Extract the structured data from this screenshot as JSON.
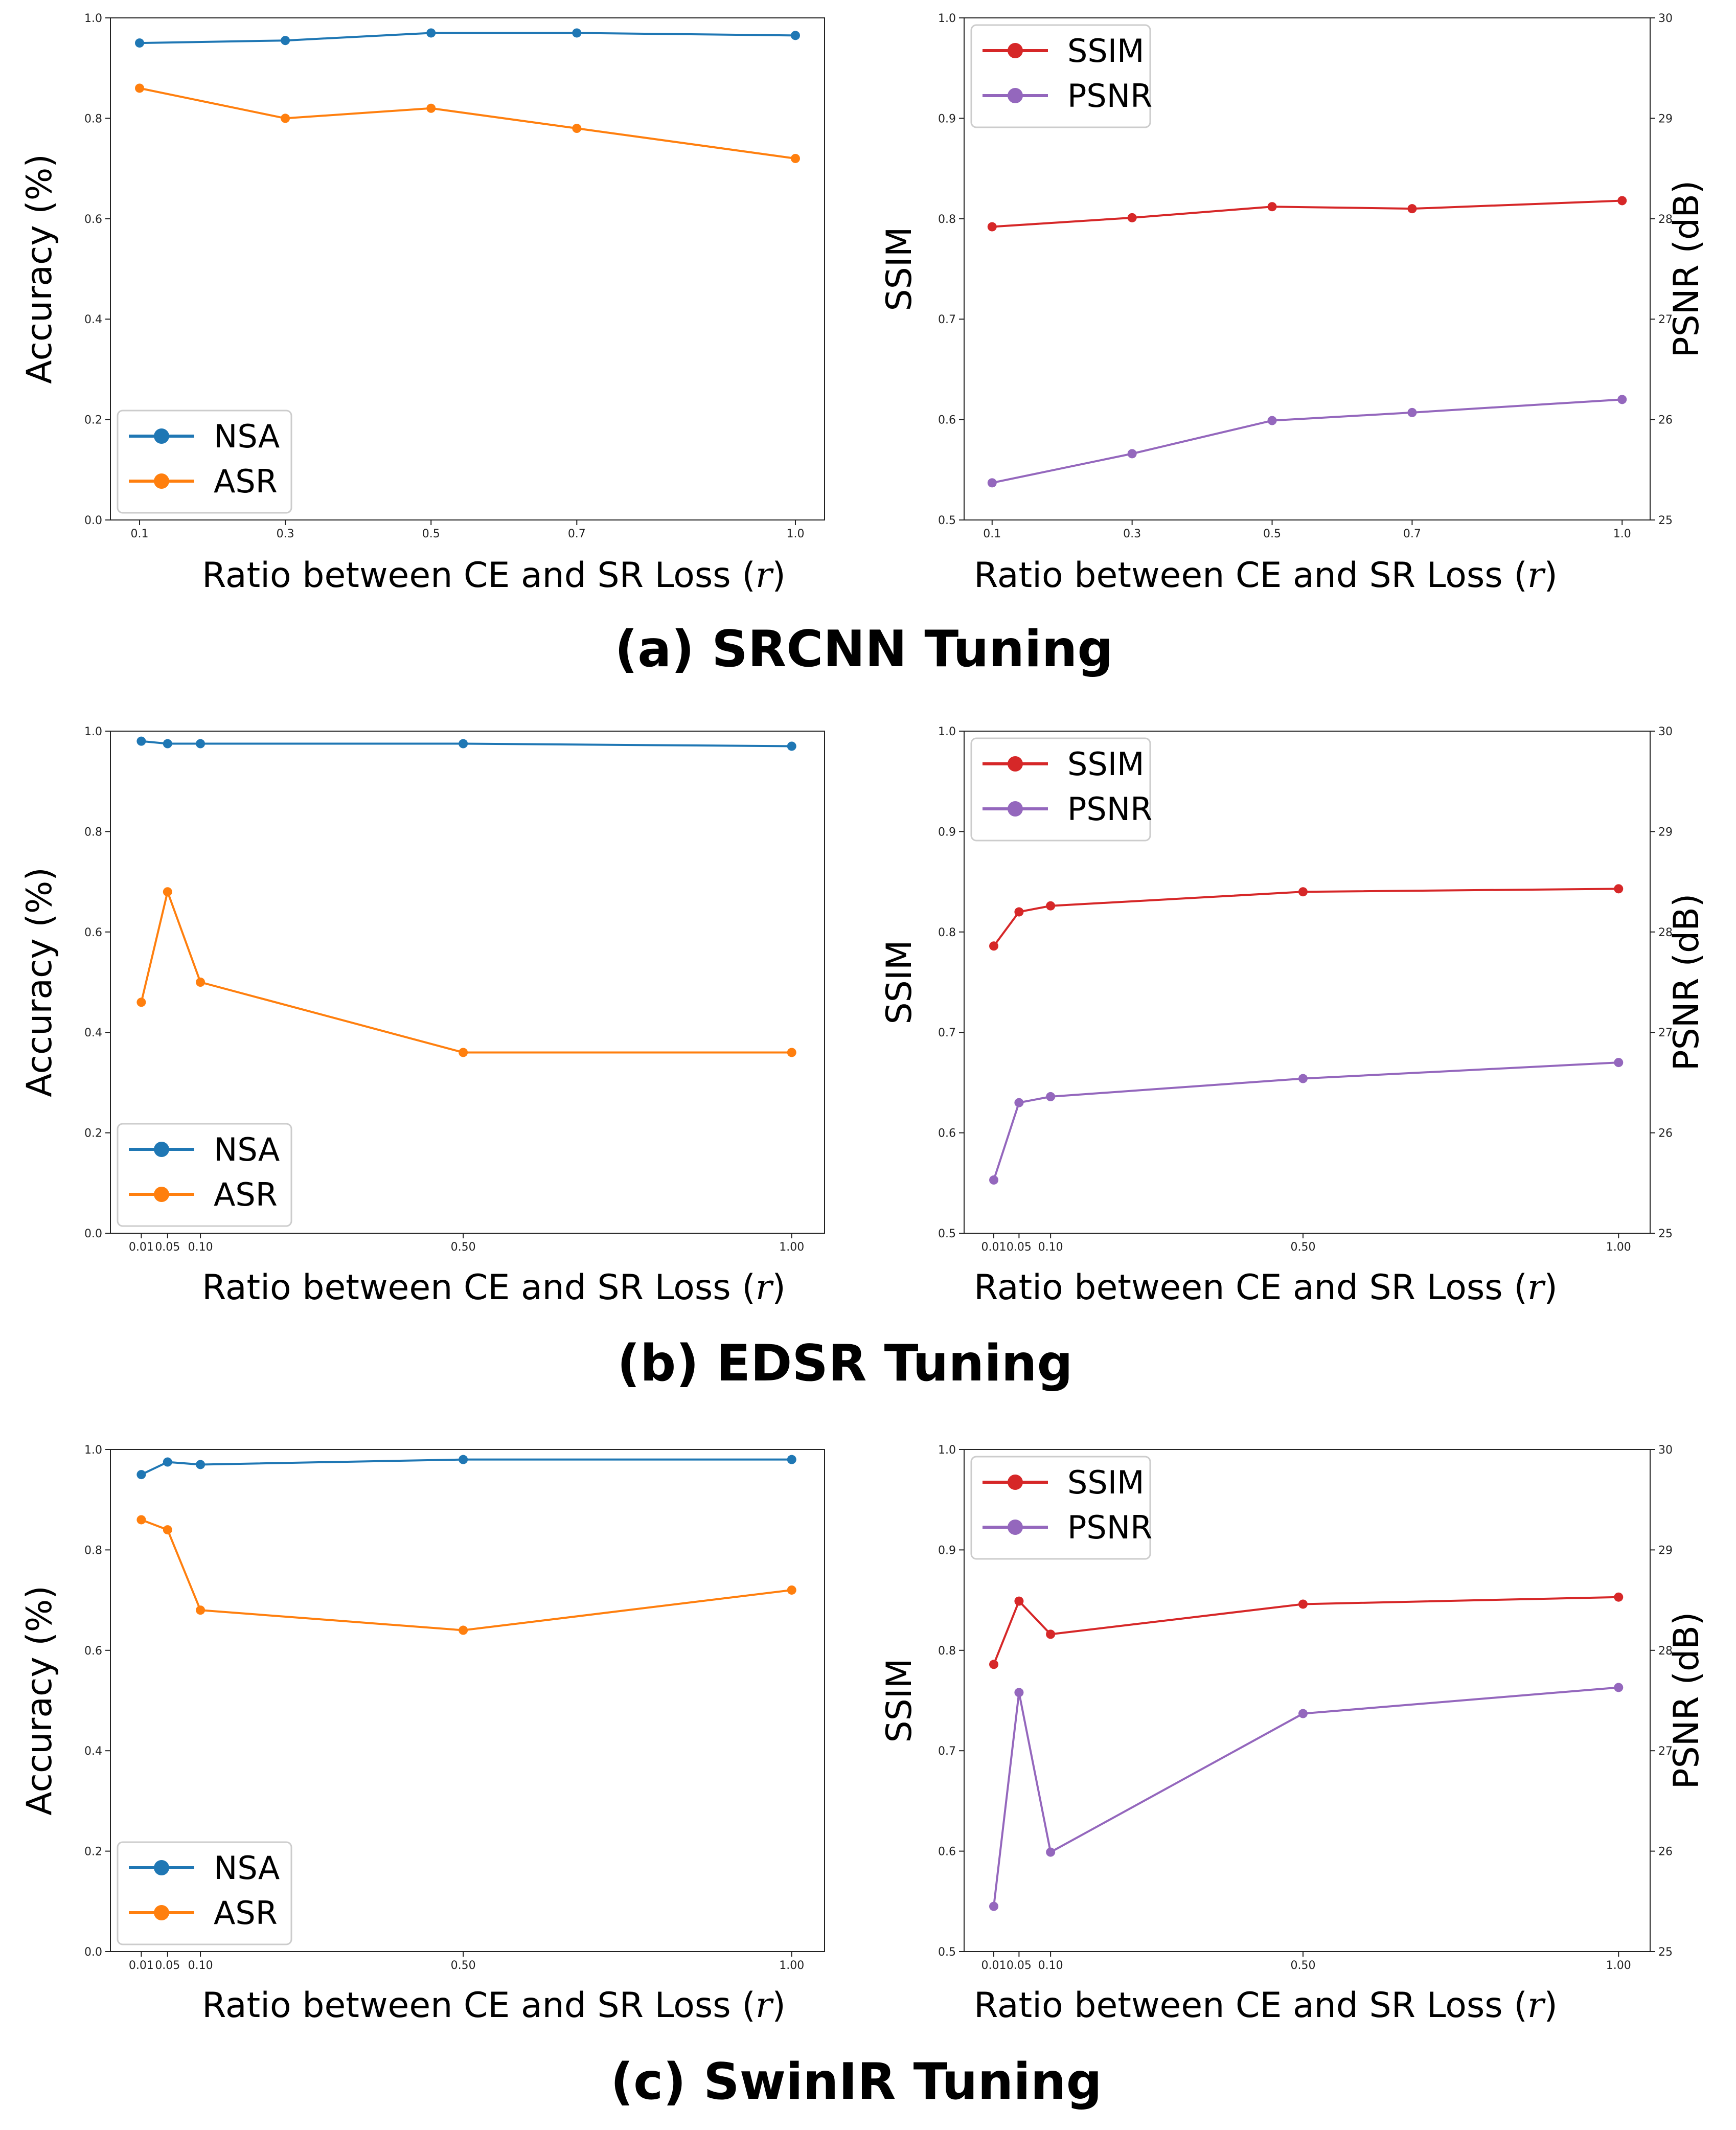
{
  "colors": {
    "nsa": "#1f77b4",
    "asr": "#ff7f0e",
    "ssim": "#d62728",
    "psnr": "#9467bd",
    "axis": "#222222"
  },
  "captions": [
    "(a) SRCNN Tuning",
    "(b) EDSR Tuning",
    "(c) SwinIR Tuning"
  ],
  "chart_data": [
    {
      "id": "srcnn-accuracy",
      "type": "line",
      "xlabel": "Ratio between CE and SR Loss (r)",
      "ylabel": "Accuracy (%)",
      "ylim": [
        0,
        1.0
      ],
      "xlim": [
        0.06,
        1.04
      ],
      "x": [
        0.1,
        0.3,
        0.5,
        0.7,
        1.0
      ],
      "xtick_values": [
        0.1,
        0.3,
        0.5,
        0.7,
        1.0
      ],
      "xtick_labels": [
        "0.1",
        "0.3",
        "0.5",
        "0.7",
        "1.0"
      ],
      "ytick_values": [
        0.0,
        0.2,
        0.4,
        0.6,
        0.8,
        1.0
      ],
      "ytick_labels": [
        "0.0",
        "0.2",
        "0.4",
        "0.6",
        "0.8",
        "1.0"
      ],
      "legend_position": "lower-left",
      "series": [
        {
          "name": "NSA",
          "color_key": "nsa",
          "values": [
            0.95,
            0.955,
            0.97,
            0.97,
            0.965
          ]
        },
        {
          "name": "ASR",
          "color_key": "asr",
          "values": [
            0.86,
            0.8,
            0.82,
            0.78,
            0.72
          ]
        }
      ]
    },
    {
      "id": "srcnn-quality",
      "type": "line",
      "xlabel": "Ratio between CE and SR Loss (r)",
      "ylabel": "SSIM",
      "y2label": "PSNR (dB)",
      "ylim": [
        0.5,
        1.0
      ],
      "y2lim": [
        25,
        30
      ],
      "xlim": [
        0.06,
        1.04
      ],
      "x": [
        0.1,
        0.3,
        0.5,
        0.7,
        1.0
      ],
      "xtick_values": [
        0.1,
        0.3,
        0.5,
        0.7,
        1.0
      ],
      "xtick_labels": [
        "0.1",
        "0.3",
        "0.5",
        "0.7",
        "1.0"
      ],
      "ytick_values": [
        0.5,
        0.6,
        0.7,
        0.8,
        0.9,
        1.0
      ],
      "ytick_labels": [
        "0.5",
        "0.6",
        "0.7",
        "0.8",
        "0.9",
        "1.0"
      ],
      "y2tick_values": [
        25,
        26,
        27,
        28,
        29,
        30
      ],
      "y2tick_labels": [
        "25",
        "26",
        "27",
        "28",
        "29",
        "30"
      ],
      "legend_position": "upper-left",
      "series": [
        {
          "name": "SSIM",
          "color_key": "ssim",
          "axis": "left",
          "values": [
            0.792,
            0.801,
            0.812,
            0.81,
            0.818
          ]
        },
        {
          "name": "PSNR",
          "color_key": "psnr",
          "axis": "right",
          "values": [
            25.37,
            25.66,
            25.99,
            26.07,
            26.2
          ]
        }
      ]
    },
    {
      "id": "edsr-accuracy",
      "type": "line",
      "xlabel": "Ratio between CE and SR Loss (r)",
      "ylabel": "Accuracy (%)",
      "ylim": [
        0,
        1.0
      ],
      "xlim": [
        -0.037,
        1.05
      ],
      "x": [
        0.01,
        0.05,
        0.1,
        0.5,
        1.0
      ],
      "xtick_values": [
        0.01,
        0.05,
        0.1,
        0.5,
        1.0
      ],
      "xtick_labels": [
        "0.01",
        "0.05",
        "0.10",
        "0.50",
        "1.00"
      ],
      "ytick_values": [
        0.0,
        0.2,
        0.4,
        0.6,
        0.8,
        1.0
      ],
      "ytick_labels": [
        "0.0",
        "0.2",
        "0.4",
        "0.6",
        "0.8",
        "1.0"
      ],
      "legend_position": "lower-left",
      "series": [
        {
          "name": "NSA",
          "color_key": "nsa",
          "values": [
            0.98,
            0.975,
            0.975,
            0.975,
            0.97
          ]
        },
        {
          "name": "ASR",
          "color_key": "asr",
          "values": [
            0.46,
            0.68,
            0.5,
            0.36,
            0.36
          ]
        }
      ]
    },
    {
      "id": "edsr-quality",
      "type": "line",
      "xlabel": "Ratio between CE and SR Loss (r)",
      "ylabel": "SSIM",
      "y2label": "PSNR (dB)",
      "ylim": [
        0.5,
        1.0
      ],
      "y2lim": [
        25,
        30
      ],
      "xlim": [
        -0.037,
        1.05
      ],
      "x": [
        0.01,
        0.05,
        0.1,
        0.5,
        1.0
      ],
      "xtick_values": [
        0.01,
        0.05,
        0.1,
        0.5,
        1.0
      ],
      "xtick_labels": [
        "0.01",
        "0.05",
        "0.10",
        "0.50",
        "1.00"
      ],
      "ytick_values": [
        0.5,
        0.6,
        0.7,
        0.8,
        0.9,
        1.0
      ],
      "ytick_labels": [
        "0.5",
        "0.6",
        "0.7",
        "0.8",
        "0.9",
        "1.0"
      ],
      "y2tick_values": [
        25,
        26,
        27,
        28,
        29,
        30
      ],
      "y2tick_labels": [
        "25",
        "26",
        "27",
        "28",
        "29",
        "30"
      ],
      "legend_position": "upper-left",
      "series": [
        {
          "name": "SSIM",
          "color_key": "ssim",
          "axis": "left",
          "values": [
            0.786,
            0.82,
            0.826,
            0.84,
            0.843
          ]
        },
        {
          "name": "PSNR",
          "color_key": "psnr",
          "axis": "right",
          "values": [
            25.53,
            26.3,
            26.36,
            26.54,
            26.7
          ]
        }
      ]
    },
    {
      "id": "swinir-accuracy",
      "type": "line",
      "xlabel": "Ratio between CE and SR Loss (r)",
      "ylabel": "Accuracy (%)",
      "ylim": [
        0,
        1.0
      ],
      "xlim": [
        -0.037,
        1.05
      ],
      "x": [
        0.01,
        0.05,
        0.1,
        0.5,
        1.0
      ],
      "xtick_values": [
        0.01,
        0.05,
        0.1,
        0.5,
        1.0
      ],
      "xtick_labels": [
        "0.01",
        "0.05",
        "0.10",
        "0.50",
        "1.00"
      ],
      "ytick_values": [
        0.0,
        0.2,
        0.4,
        0.6,
        0.8,
        1.0
      ],
      "ytick_labels": [
        "0.0",
        "0.2",
        "0.4",
        "0.6",
        "0.8",
        "1.0"
      ],
      "legend_position": "lower-left",
      "series": [
        {
          "name": "NSA",
          "color_key": "nsa",
          "values": [
            0.95,
            0.975,
            0.97,
            0.98,
            0.98
          ]
        },
        {
          "name": "ASR",
          "color_key": "asr",
          "values": [
            0.86,
            0.84,
            0.68,
            0.64,
            0.72
          ]
        }
      ]
    },
    {
      "id": "swinir-quality",
      "type": "line",
      "xlabel": "Ratio between CE and SR Loss (r)",
      "ylabel": "SSIM",
      "y2label": "PSNR (dB)",
      "ylim": [
        0.5,
        1.0
      ],
      "y2lim": [
        25,
        30
      ],
      "xlim": [
        -0.037,
        1.05
      ],
      "x": [
        0.01,
        0.05,
        0.1,
        0.5,
        1.0
      ],
      "xtick_values": [
        0.01,
        0.05,
        0.1,
        0.5,
        1.0
      ],
      "xtick_labels": [
        "0.01",
        "0.05",
        "0.10",
        "0.50",
        "1.00"
      ],
      "ytick_values": [
        0.5,
        0.6,
        0.7,
        0.8,
        0.9,
        1.0
      ],
      "ytick_labels": [
        "0.5",
        "0.6",
        "0.7",
        "0.8",
        "0.9",
        "1.0"
      ],
      "y2tick_values": [
        25,
        26,
        27,
        28,
        29,
        30
      ],
      "y2tick_labels": [
        "25",
        "26",
        "27",
        "28",
        "29",
        "30"
      ],
      "legend_position": "upper-left",
      "series": [
        {
          "name": "SSIM",
          "color_key": "ssim",
          "axis": "left",
          "values": [
            0.786,
            0.849,
            0.816,
            0.846,
            0.853
          ]
        },
        {
          "name": "PSNR",
          "color_key": "psnr",
          "axis": "right",
          "values": [
            25.45,
            27.58,
            25.99,
            27.37,
            27.63
          ]
        }
      ]
    }
  ]
}
